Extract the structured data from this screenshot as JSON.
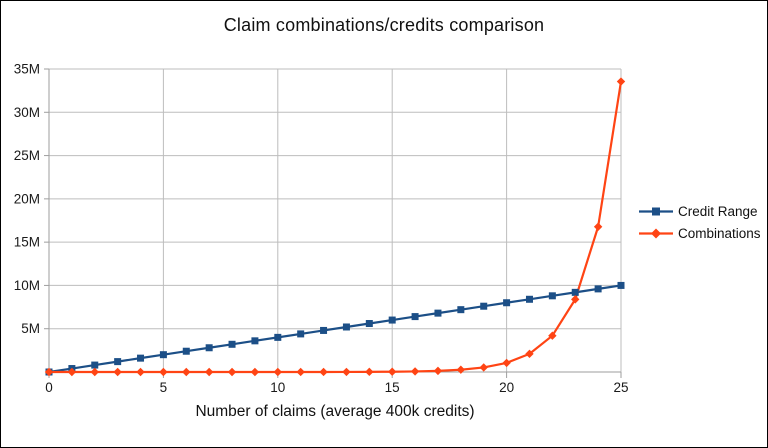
{
  "window": {
    "title": "Claim combinations/credits comparison"
  },
  "chart_data": {
    "type": "line",
    "title": "Claim combinations/credits comparison",
    "xlabel": "Number of claims (average 400k credits)",
    "ylabel": "",
    "xlim": [
      0,
      25
    ],
    "ylim": [
      0,
      35000000
    ],
    "grid": true,
    "legend_position": "right-outside",
    "x": [
      0,
      1,
      2,
      3,
      4,
      5,
      6,
      7,
      8,
      9,
      10,
      11,
      12,
      13,
      14,
      15,
      16,
      17,
      18,
      19,
      20,
      21,
      22,
      23,
      24,
      25
    ],
    "series": [
      {
        "name": "Credit Range",
        "color": "#1c4f87",
        "marker": "square",
        "values": [
          0,
          400000,
          800000,
          1200000,
          1600000,
          2000000,
          2400000,
          2800000,
          3200000,
          3600000,
          4000000,
          4400000,
          4800000,
          5200000,
          5600000,
          6000000,
          6400000,
          6800000,
          7200000,
          7600000,
          8000000,
          8400000,
          8800000,
          9200000,
          9600000,
          10000000
        ]
      },
      {
        "name": "Combinations",
        "color": "#ff4414",
        "marker": "diamond",
        "values": [
          1,
          2,
          4,
          8,
          16,
          32,
          64,
          128,
          256,
          512,
          1024,
          2048,
          4096,
          8192,
          16384,
          32768,
          65536,
          131072,
          262144,
          524288,
          1048576,
          2097152,
          4194304,
          8388608,
          16777216,
          33554432
        ]
      }
    ],
    "xticks": {
      "values": [
        0,
        5,
        10,
        15,
        20,
        25
      ],
      "labels": [
        "0",
        "5",
        "10",
        "15",
        "20",
        "25"
      ]
    },
    "yticks": {
      "values": [
        5000000,
        10000000,
        15000000,
        20000000,
        25000000,
        30000000,
        35000000
      ],
      "labels": [
        "5M",
        "10M",
        "15M",
        "20M",
        "25M",
        "30M",
        "35M"
      ]
    }
  },
  "colors": {
    "background": "#ffffff",
    "gridline": "#bdbdbd",
    "axis": "#9e9e9e",
    "text": "#1a1a1a",
    "credit_range": "#1c4f87",
    "combinations": "#ff4414"
  }
}
